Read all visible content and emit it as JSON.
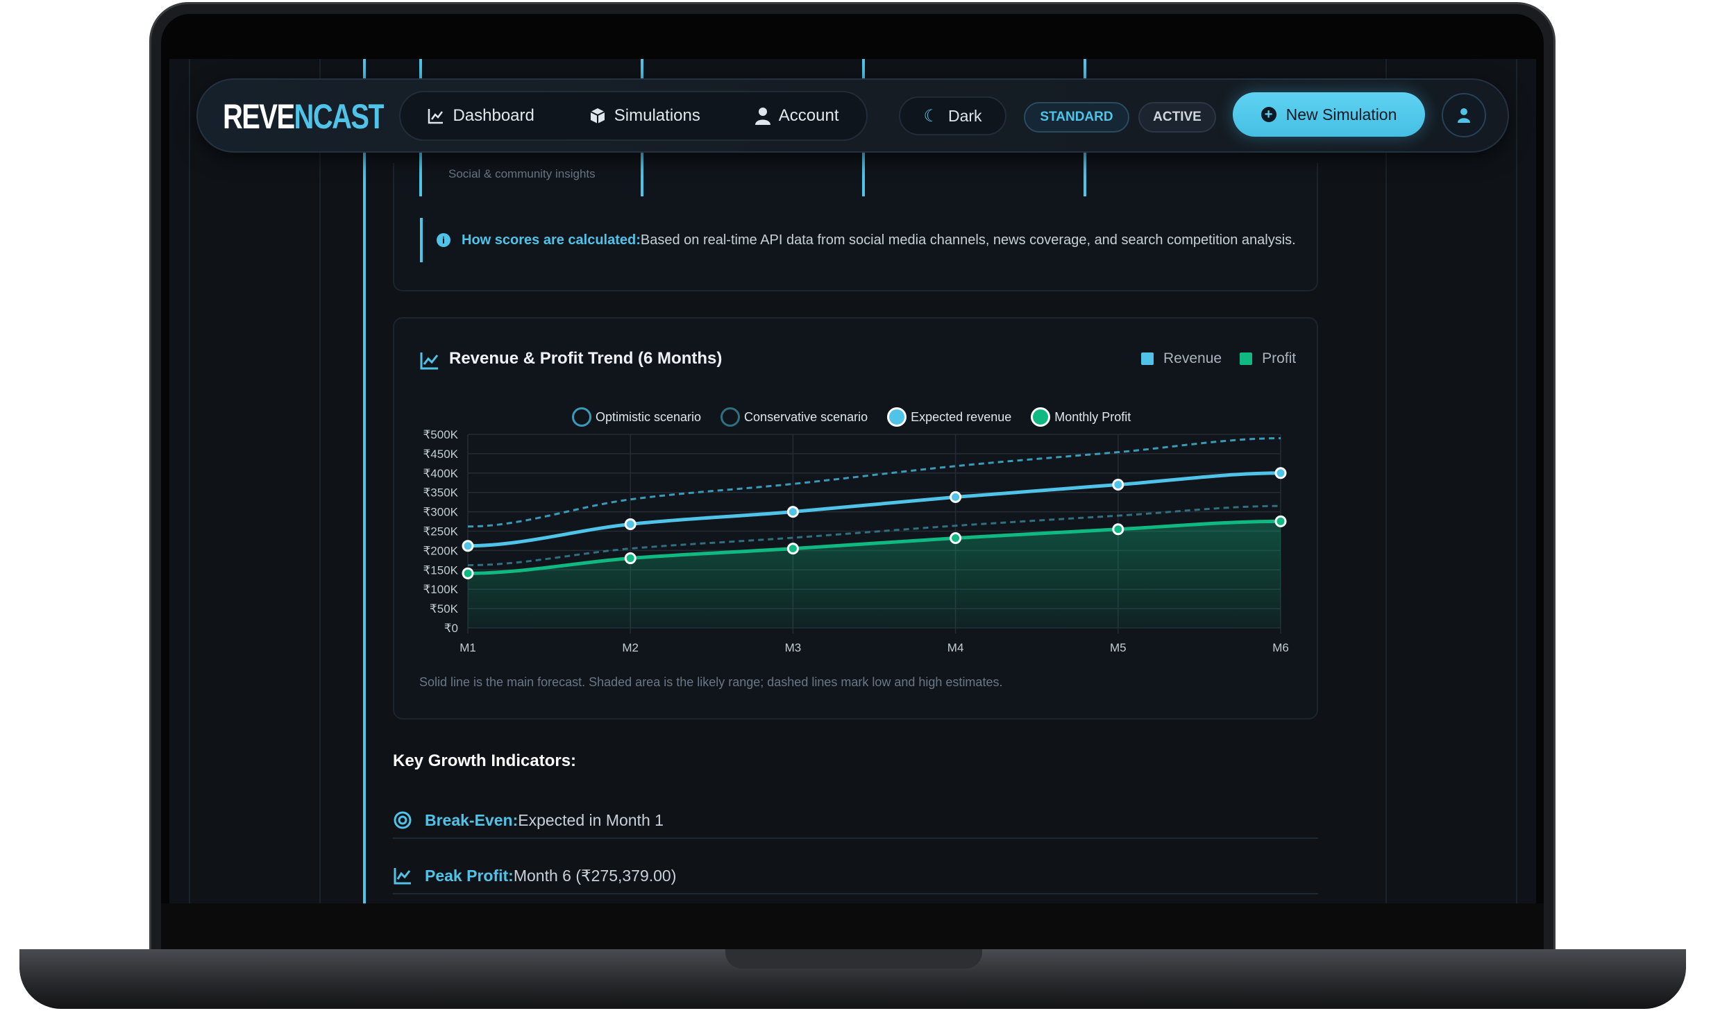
{
  "nav": {
    "logo": "REVENCAST",
    "items": [
      {
        "label": "Dashboard",
        "icon": "chart-line-icon"
      },
      {
        "label": "Simulations",
        "icon": "cube-icon"
      },
      {
        "label": "Account",
        "icon": "user-icon"
      }
    ],
    "theme_label": "Dark",
    "plan_badge": "STANDARD",
    "status_badge": "ACTIVE",
    "new_button": "New Simulation"
  },
  "score_cards": {
    "subtitle": "Social & community insights"
  },
  "info": {
    "label": "How scores are calculated:",
    "text": " Based on real-time API data from social media channels, news coverage, and search competition analysis."
  },
  "trend": {
    "title": "Revenue & Profit Trend (6 Months)",
    "legend": [
      {
        "label": "Revenue",
        "color": "#4fc3e8"
      },
      {
        "label": "Profit",
        "color": "#10b981"
      }
    ],
    "caption": "Solid line is the main forecast. Shaded area is the likely range; dashed lines mark low and high estimates."
  },
  "chart_data": {
    "type": "line",
    "categories": [
      "M1",
      "M2",
      "M3",
      "M4",
      "M5",
      "M6"
    ],
    "ylim": [
      0,
      500000
    ],
    "yticks": [
      "₹0",
      "₹50K",
      "₹100K",
      "₹150K",
      "₹200K",
      "₹250K",
      "₹300K",
      "₹350K",
      "₹400K",
      "₹450K",
      "₹500K"
    ],
    "grid": true,
    "legend_placement": "top",
    "series": [
      {
        "name": "Optimistic scenario",
        "style": "dashed",
        "color": "#3a9bb8",
        "values": [
          262000,
          332000,
          372000,
          418000,
          454000,
          490000
        ]
      },
      {
        "name": "Conservative scenario",
        "style": "dashed",
        "color": "#2f6f80",
        "values": [
          162000,
          205000,
          233000,
          264000,
          290000,
          315000
        ]
      },
      {
        "name": "Expected revenue",
        "style": "solid",
        "color": "#4fc3e8",
        "values": [
          212000,
          268000,
          300000,
          338000,
          370000,
          400000
        ]
      },
      {
        "name": "Monthly Profit",
        "style": "solid-filled",
        "color": "#10b981",
        "values": [
          141000,
          180000,
          205000,
          232000,
          255000,
          275379
        ]
      }
    ]
  },
  "growth": {
    "heading": "Key Growth Indicators:",
    "items": [
      {
        "label": "Break-Even:",
        "value": " Expected in Month 1",
        "icon": "target-icon"
      },
      {
        "label": "Peak Profit:",
        "value": " Month 6 (₹275,379.00)",
        "icon": "chart-line-icon"
      }
    ]
  }
}
